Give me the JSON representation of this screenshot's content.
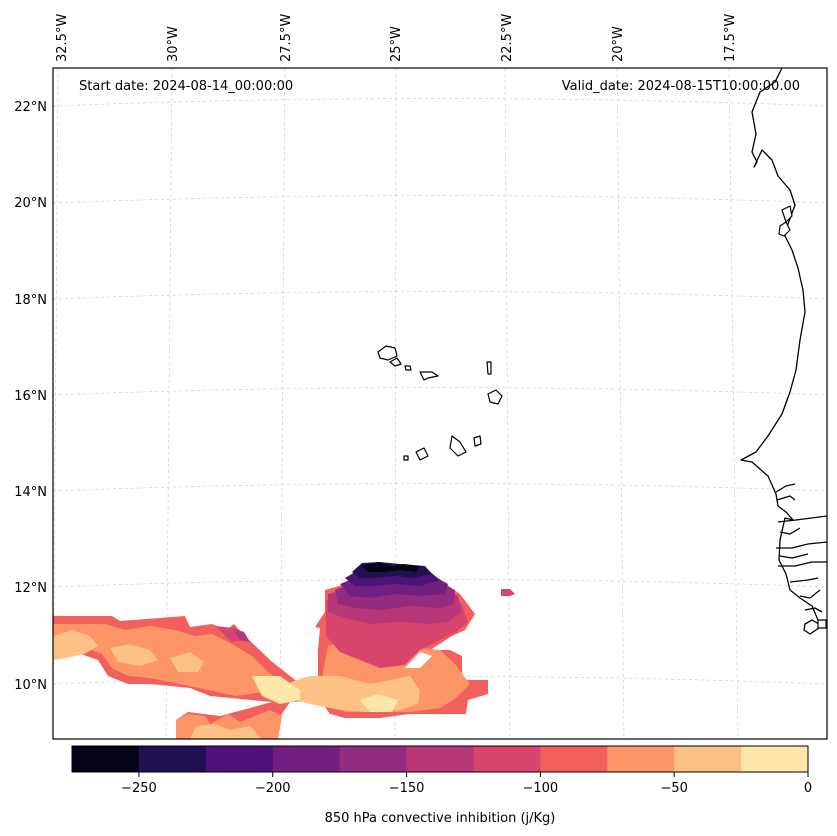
{
  "map": {
    "start_label": "Start date: 2024-08-14_00:00:00",
    "valid_label": "Valid_date: 2024-08-15T10:00:00.00",
    "lon_labels": [
      "32.5°W",
      "30°W",
      "27.5°W",
      "25°W",
      "22.5°W",
      "20°W",
      "17.5°W"
    ],
    "lat_labels": [
      "22°N",
      "20°N",
      "18°N",
      "16°N",
      "14°N",
      "12°N",
      "10°N"
    ],
    "colorbar": {
      "title": "850 hPa convective inhibition (j/Kg)",
      "tick_labels": [
        "−250",
        "−200",
        "−150",
        "−100",
        "−50",
        "0"
      ],
      "levels": [
        -275,
        -250,
        -225,
        -200,
        -175,
        -150,
        -125,
        -100,
        -75,
        -50,
        -25,
        0
      ],
      "colors": [
        "#050417",
        "#221150",
        "#4f127b",
        "#721f81",
        "#932b80",
        "#b73779",
        "#d8456c",
        "#f1605d",
        "#fd9567",
        "#fec185",
        "#fee7a8"
      ]
    }
  }
}
